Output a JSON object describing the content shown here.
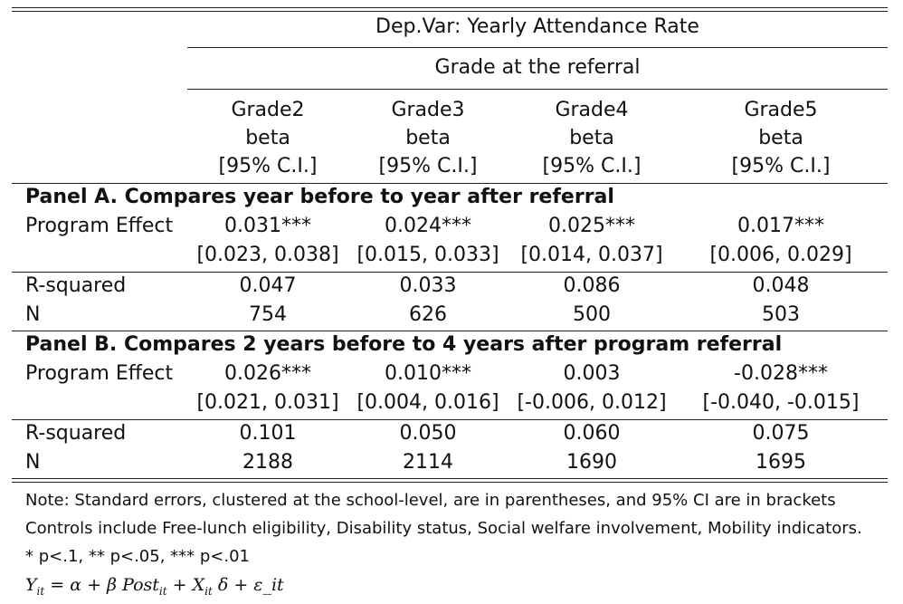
{
  "header": {
    "depvar": "Dep.Var: Yearly Attendance Rate",
    "grade_at_referral": "Grade at the referral",
    "columns": [
      {
        "grade": "Grade2",
        "stat": "beta",
        "ci": "[95% C.I.]"
      },
      {
        "grade": "Grade3",
        "stat": "beta",
        "ci": "[95% C.I.]"
      },
      {
        "grade": "Grade4",
        "stat": "beta",
        "ci": "[95% C.I.]"
      },
      {
        "grade": "Grade5",
        "stat": "beta",
        "ci": "[95% C.I.]"
      }
    ]
  },
  "panelA": {
    "title": "Panel A. Compares year before to year after referral",
    "effect_label": "Program Effect",
    "effects": [
      "0.031***",
      "0.024***",
      "0.025***",
      "0.017***"
    ],
    "cis": [
      "[0.023, 0.038]",
      "[0.015, 0.033]",
      "[0.014, 0.037]",
      "[0.006, 0.029]"
    ],
    "r2_label": "R-squared",
    "r2": [
      "0.047",
      "0.033",
      "0.086",
      "0.048"
    ],
    "n_label": "N",
    "n": [
      "754",
      "626",
      "500",
      "503"
    ]
  },
  "panelB": {
    "title": "Panel B. Compares 2 years before to 4 years after program referral",
    "effect_label": "Program Effect",
    "effects": [
      "0.026***",
      "0.010***",
      "0.003",
      "-0.028***"
    ],
    "cis": [
      "[0.021, 0.031]",
      "[0.004, 0.016]",
      "[-0.006, 0.012]",
      "[-0.040, -0.015]"
    ],
    "r2_label": "R-squared",
    "r2": [
      "0.101",
      "0.050",
      "0.060",
      "0.075"
    ],
    "n_label": "N",
    "n": [
      "2188",
      "2114",
      "1690",
      "1695"
    ]
  },
  "notes": [
    "Note: Standard errors, clustered at the school-level, are in parentheses, and 95% CI are in brackets",
    "Controls include Free-lunch eligibility, Disability status, Social welfare involvement, Mobility indicators.",
    "* p<.1, ** p<.05, *** p<.01"
  ],
  "formula": "Y_it = α + β Post_it + X_it δ + ε_it"
}
